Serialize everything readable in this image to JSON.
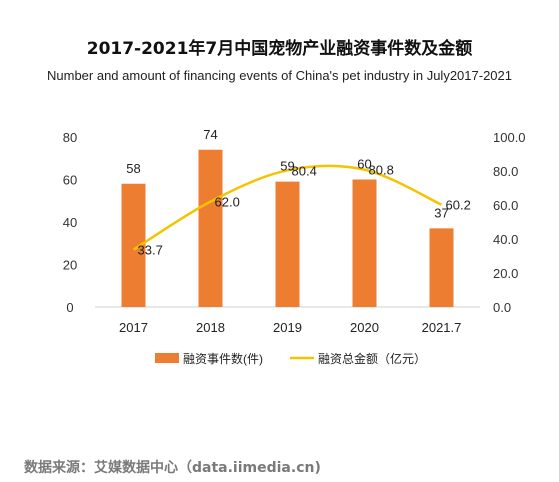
{
  "title": "2017-2021年7月中国宠物产业融资事件数及金额",
  "subtitle": "Number and amount of financing events of China's pet industry in July2017-2021",
  "source": "数据来源：艾媒数据中心（data.iimedia.cn)",
  "chart_data": {
    "type": "bar",
    "categories": [
      "2017",
      "2018",
      "2019",
      "2020",
      "2021.7"
    ],
    "series": [
      {
        "name": "融资事件数(件)",
        "type": "bar",
        "axis": "left",
        "values": [
          58,
          74,
          59,
          60,
          37
        ],
        "color": "#ed7d31"
      },
      {
        "name": "融资总金额（亿元）",
        "type": "line",
        "axis": "right",
        "values": [
          33.7,
          62.0,
          80.4,
          80.8,
          60.2
        ],
        "value_labels": [
          "33.7",
          "62.0",
          "80.4",
          "80.8",
          "60.2"
        ],
        "color": "#f5c400"
      }
    ],
    "y_left": {
      "lim": [
        0,
        80
      ],
      "ticks": [
        "0",
        "20",
        "40",
        "60",
        "80"
      ]
    },
    "y_right": {
      "lim": [
        0,
        100
      ],
      "ticks": [
        "0.0",
        "20.0",
        "40.0",
        "60.0",
        "80.0",
        "100.0"
      ]
    },
    "grid": false,
    "legend_position": "bottom"
  }
}
